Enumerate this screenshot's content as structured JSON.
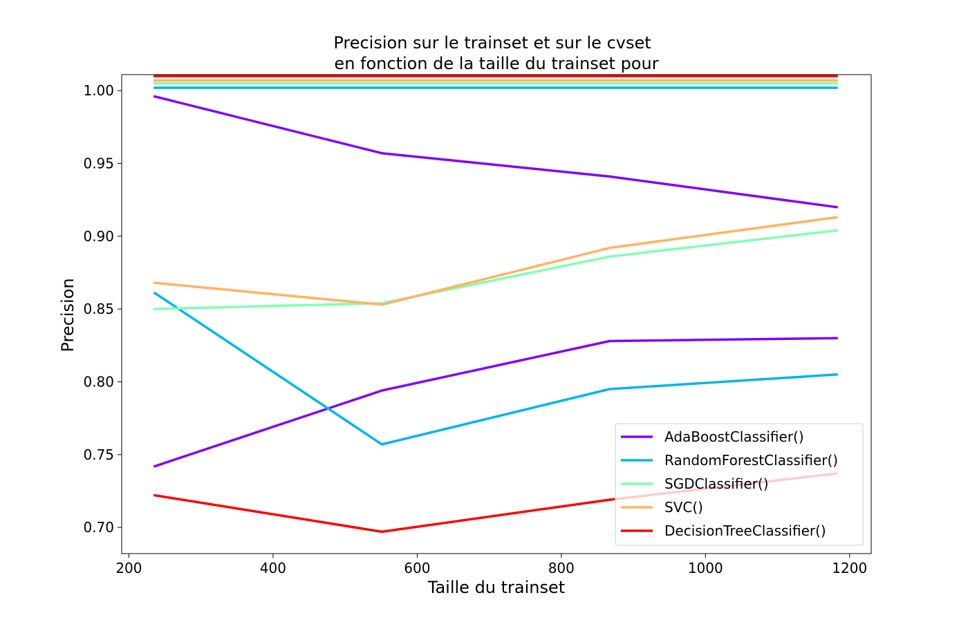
{
  "chart_data": {
    "type": "line",
    "title_lines": [
      "Precision sur le trainset et sur le cvset",
      "en fonction de la taille du trainset pour"
    ],
    "xlabel": "Taille du trainset",
    "ylabel": "Precision",
    "xlim": [
      190,
      1230
    ],
    "ylim": [
      0.682,
      1.011
    ],
    "x_ticks": [
      200,
      400,
      600,
      800,
      1000,
      1200
    ],
    "y_ticks": [
      0.7,
      0.75,
      0.8,
      0.85,
      0.9,
      0.95,
      1.0
    ],
    "y_tick_labels": [
      "0.70",
      "0.75",
      "0.80",
      "0.85",
      "0.90",
      "0.95",
      "1.00"
    ],
    "x": [
      236,
      551,
      867,
      1182
    ],
    "legend_position": "lower-right",
    "series": [
      {
        "name": "AdaBoostClassifier()",
        "color": "#8000ff",
        "train": [
          0.996,
          0.957,
          0.941,
          0.92
        ],
        "cv": [
          0.742,
          0.794,
          0.828,
          0.83
        ]
      },
      {
        "name": "RandomForestClassifier()",
        "color": "#00b5eb",
        "train": [
          1.002,
          1.002,
          1.002,
          1.002
        ],
        "cv": [
          0.861,
          0.757,
          0.795,
          0.805
        ]
      },
      {
        "name": "SGDClassifier()",
        "color": "#80ffb4",
        "train": [
          1.005,
          1.005,
          1.005,
          1.005
        ],
        "cv": [
          0.85,
          0.854,
          0.886,
          0.904
        ]
      },
      {
        "name": "SVC()",
        "color": "#ffb360",
        "train": [
          1.007,
          1.007,
          1.007,
          1.007
        ],
        "cv": [
          0.868,
          0.853,
          0.892,
          0.913
        ]
      },
      {
        "name": "DecisionTreeClassifier()",
        "color": "#ff0000",
        "train": [
          1.01,
          1.01,
          1.01,
          1.01
        ],
        "cv": [
          0.722,
          0.697,
          0.719,
          0.737
        ]
      }
    ]
  }
}
